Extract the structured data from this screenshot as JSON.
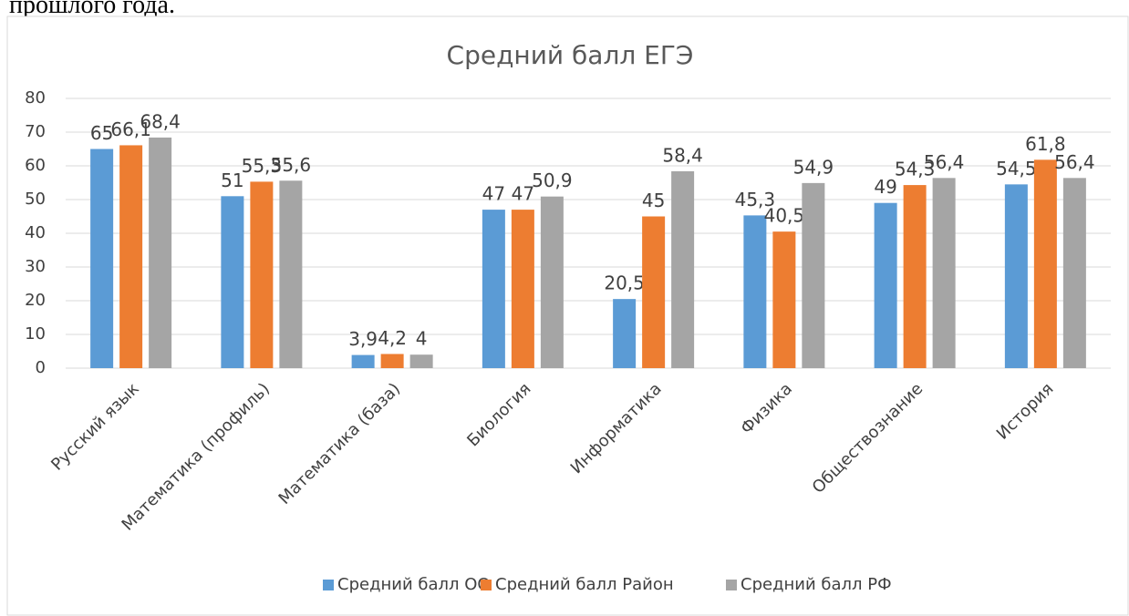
{
  "page_text": "прошлого года.",
  "chart_data": {
    "type": "bar",
    "title": "Средний балл ЕГЭ",
    "categories": [
      "Русский язык",
      "Математика (профиль)",
      "Математика (база)",
      "Биология",
      "Информатика",
      "Физика",
      "Обществознание",
      "История"
    ],
    "series": [
      {
        "name": "Средний балл ОО",
        "color": "#5b9bd5",
        "values": [
          65,
          51,
          3.9,
          47,
          20.5,
          45.3,
          49,
          54.5
        ],
        "value_labels": [
          "65",
          "51",
          "3,9",
          "47",
          "20,5",
          "45,3",
          "49",
          "54,5"
        ]
      },
      {
        "name": "Средний балл Район",
        "color": "#ed7d31",
        "values": [
          66.1,
          55.3,
          4.2,
          47,
          45,
          40.5,
          54.3,
          61.8
        ],
        "value_labels": [
          "66,1",
          "55,3",
          "4,2",
          "47",
          "45",
          "40,5",
          "54,3",
          "61,8"
        ]
      },
      {
        "name": "Средний балл РФ",
        "color": "#a5a5a5",
        "values": [
          68.4,
          55.6,
          4,
          50.9,
          58.4,
          54.9,
          56.4,
          56.4
        ],
        "value_labels": [
          "68,4",
          "55,6",
          "4",
          "50,9",
          "58,4",
          "54,9",
          "56,4",
          "56,4"
        ]
      }
    ],
    "ylim": [
      0,
      80
    ],
    "yticks": [
      0,
      10,
      20,
      30,
      40,
      50,
      60,
      70,
      80
    ],
    "grid": true,
    "legend": "bottom"
  }
}
